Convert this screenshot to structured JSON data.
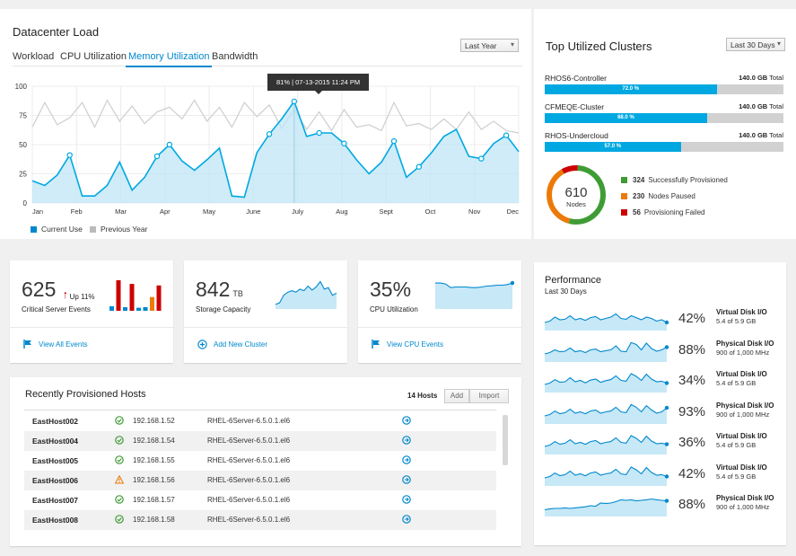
{
  "datacenter": {
    "title": "Datacenter Load",
    "tabs": [
      "Workload",
      "CPU Utilization",
      "Memory Utilization",
      "Bandwidth"
    ],
    "active_tab": "Memory Utilization",
    "range_select": "Last Year",
    "tooltip": "81% | 07-13-2015 11:24 PM",
    "legend": [
      "Current Use",
      "Previous Year"
    ]
  },
  "chart_data": {
    "type": "area",
    "x_ticks": [
      "Jan",
      "Feb",
      "Mar",
      "Apr",
      "May",
      "June",
      "July",
      "Aug",
      "Sept",
      "Oct",
      "Nov",
      "Dec"
    ],
    "y_ticks": [
      "0",
      "25",
      "50",
      "75",
      "100"
    ],
    "ylim": [
      0,
      100
    ],
    "grid": true,
    "legend_position": "bottom-left",
    "series": [
      {
        "name": "Current Use",
        "color": "#00a8e1",
        "values": [
          19,
          15,
          24,
          41,
          6,
          6,
          15,
          35,
          11,
          22,
          40,
          50,
          36,
          28,
          37,
          47,
          6,
          5,
          43,
          59,
          72,
          87,
          57,
          60,
          60,
          51,
          37,
          25,
          35,
          53,
          22,
          31,
          43,
          57,
          63,
          40,
          38,
          51,
          58,
          44
        ]
      },
      {
        "name": "Previous Year",
        "color": "#d1d1d1",
        "values": [
          65,
          86,
          67,
          73,
          86,
          65,
          88,
          70,
          83,
          68,
          78,
          82,
          72,
          88,
          70,
          82,
          65,
          86,
          74,
          84,
          64,
          80,
          63,
          78,
          62,
          80,
          65,
          67,
          62,
          86,
          66,
          68,
          63,
          72,
          63,
          78,
          63,
          70,
          62,
          60
        ]
      }
    ],
    "markers_current": [
      [
        3,
        41
      ],
      [
        10,
        40
      ],
      [
        11,
        50
      ],
      [
        19,
        59
      ],
      [
        21,
        87
      ],
      [
        23,
        60
      ],
      [
        25,
        51
      ],
      [
        29,
        53
      ],
      [
        31,
        31
      ],
      [
        36,
        38
      ],
      [
        38,
        58
      ]
    ]
  },
  "clusters": {
    "title": "Top Utilized Clusters",
    "range_select": "Last 30 Days",
    "items": [
      {
        "name": "RHOS6-Controller",
        "total": "140.0 GB",
        "total_suffix": "Total",
        "percent_label": "72.0 %",
        "percent": 72
      },
      {
        "name": "CFMEQE-Cluster",
        "total": "140.0 GB",
        "total_suffix": "Total",
        "percent_label": "68.0 %",
        "percent": 68
      },
      {
        "name": "RHOS-Undercloud",
        "total": "140.0 GB",
        "total_suffix": "Total",
        "percent_label": "57.0 %",
        "percent": 57
      }
    ],
    "donut": {
      "total": "610",
      "label": "Nodes",
      "segments": [
        {
          "count": "324",
          "label": "Successfully Provisioned",
          "value": 324,
          "color": "#3f9c35"
        },
        {
          "count": "230",
          "label": "Nodes Paused",
          "value": 230,
          "color": "#ec7a08"
        },
        {
          "count": "56",
          "label": "Provisioning Failed",
          "value": 56,
          "color": "#cc0000"
        }
      ]
    }
  },
  "cards": [
    {
      "big": "625",
      "trend": "Up 11%",
      "sub": "Critical Server Events",
      "link": "View All Events",
      "bars": [
        {
          "value": 15,
          "color": "#0088ce"
        },
        {
          "value": 100,
          "color": "#cc0000"
        },
        {
          "value": 12,
          "color": "#0088ce"
        },
        {
          "value": 88,
          "color": "#cc0000"
        },
        {
          "value": 10,
          "color": "#0088ce"
        },
        {
          "value": 12,
          "color": "#0088ce"
        },
        {
          "value": 45,
          "color": "#ec7a08"
        },
        {
          "value": 83,
          "color": "#cc0000"
        }
      ]
    },
    {
      "big": "842",
      "unit": "TB",
      "sub": "Storage Capacity",
      "link": "Add New Cluster",
      "spark": [
        15,
        20,
        45,
        55,
        60,
        55,
        65,
        60,
        75,
        62,
        72,
        90,
        65,
        70,
        45,
        52
      ]
    },
    {
      "big": "35%",
      "sub": "CPU Utilization",
      "link": "View CPU Events",
      "spark": [
        85,
        85,
        82,
        70,
        72,
        72,
        72,
        70,
        70,
        72,
        75,
        76,
        78,
        78,
        80,
        85
      ]
    }
  ],
  "hosts": {
    "title": "Recently Provisioned Hosts",
    "count": "14 Hosts",
    "add_label": "Add",
    "import_label": "Import",
    "rows": [
      {
        "name": "EastHost002",
        "status": "ok",
        "ip": "192.168.1.52",
        "os": "RHEL-6Server-6.5.0.1.el6"
      },
      {
        "name": "EastHost004",
        "status": "ok",
        "ip": "192.168.1.54",
        "os": "RHEL-6Server-6.5.0.1.el6"
      },
      {
        "name": "EastHost005",
        "status": "ok",
        "ip": "192.168.1.55",
        "os": "RHEL-6Server-6.5.0.1.el6"
      },
      {
        "name": "EastHost006",
        "status": "warning",
        "ip": "192.168.1.56",
        "os": "RHEL-6Server-6.5.0.1.el6"
      },
      {
        "name": "EastHost007",
        "status": "ok",
        "ip": "192.168.1.57",
        "os": "RHEL-6Server-6.5.0.1.el6"
      },
      {
        "name": "EastHost008",
        "status": "ok",
        "ip": "192.168.1.58",
        "os": "RHEL-6Server-6.5.0.1.el6"
      }
    ]
  },
  "performance": {
    "title": "Performance",
    "subtitle": "Last 30 Days",
    "rows": [
      {
        "pct": "42%",
        "label": "Virtual Disk I/O",
        "detail": "5.4 of 5.9 GB",
        "spark": [
          30,
          35,
          50,
          40,
          42,
          55,
          40,
          45,
          38,
          48,
          52,
          40,
          45,
          50,
          62,
          45,
          42,
          55,
          48,
          40,
          50,
          45,
          35,
          40,
          30
        ]
      },
      {
        "pct": "88%",
        "label": "Physical Disk I/O",
        "detail": "900 of 1,000 MHz",
        "spark": [
          30,
          35,
          45,
          38,
          40,
          52,
          38,
          42,
          35,
          45,
          48,
          38,
          42,
          45,
          60,
          40,
          38,
          72,
          65,
          45,
          70,
          50,
          40,
          45,
          55
        ]
      },
      {
        "pct": "34%",
        "label": "Virtual Disk I/O",
        "detail": "5.4 of 5.9 GB",
        "spark": [
          30,
          35,
          48,
          38,
          40,
          55,
          40,
          45,
          36,
          46,
          50,
          38,
          44,
          48,
          62,
          45,
          42,
          70,
          60,
          45,
          68,
          50,
          40,
          42,
          35
        ]
      },
      {
        "pct": "93%",
        "label": "Physical Disk I/O",
        "detail": "900 of 1,000 MHz",
        "spark": [
          30,
          35,
          48,
          38,
          42,
          55,
          40,
          45,
          38,
          48,
          52,
          40,
          45,
          48,
          62,
          45,
          42,
          72,
          62,
          45,
          68,
          52,
          40,
          45,
          60
        ]
      },
      {
        "pct": "36%",
        "label": "Virtual Disk I/O",
        "detail": "5.4 of 5.9 GB",
        "spark": [
          30,
          35,
          48,
          38,
          42,
          55,
          40,
          45,
          38,
          48,
          52,
          40,
          45,
          48,
          62,
          45,
          42,
          70,
          60,
          45,
          68,
          50,
          40,
          42,
          38
        ]
      },
      {
        "pct": "42%",
        "label": "Virtual Disk I/O",
        "detail": "5.4 of 5.9 GB",
        "spark": [
          30,
          35,
          48,
          38,
          42,
          55,
          40,
          45,
          38,
          48,
          52,
          40,
          45,
          48,
          62,
          45,
          42,
          70,
          60,
          45,
          68,
          50,
          40,
          42,
          35
        ]
      },
      {
        "pct": "88%",
        "label": "Physical Disk I/O",
        "detail": "900 of 1,000 MHz",
        "spark": [
          25,
          28,
          30,
          30,
          32,
          30,
          32,
          34,
          36,
          40,
          38,
          50,
          48,
          50,
          55,
          62,
          60,
          62,
          58,
          60,
          62,
          65,
          62,
          60,
          58
        ]
      }
    ]
  }
}
